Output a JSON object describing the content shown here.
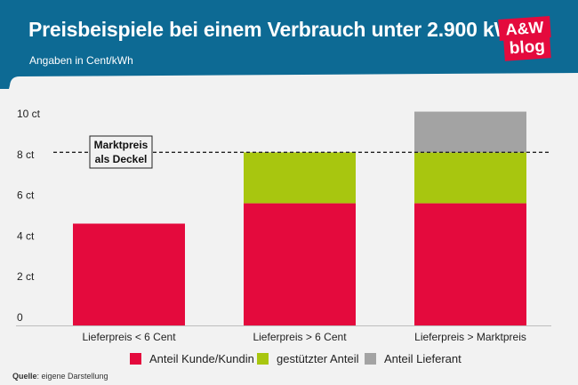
{
  "header": {
    "title": "Preisbeispiele bei einem Verbrauch unter 2.900 kWh",
    "subtitle": "Angaben in Cent/kWh",
    "logo_line1": "A&W",
    "logo_line2": "blog",
    "background_color": "#0d6a94",
    "logo_color": "#e40a3d"
  },
  "chart_data": {
    "type": "bar",
    "stacked": true,
    "categories": [
      "Lieferpreis < 6 Cent",
      "Lieferpreis > 6 Cent",
      "Lieferpreis > Marktpreis"
    ],
    "series": [
      {
        "name": "Anteil Kunde/Kundin",
        "color": "#e40a3d",
        "values": [
          5,
          6,
          6
        ]
      },
      {
        "name": "gestützter Anteil",
        "color": "#a8c60f",
        "values": [
          0,
          2.5,
          2.5
        ]
      },
      {
        "name": "Anteil Lieferant",
        "color": "#a3a3a3",
        "values": [
          0,
          0,
          2
        ]
      }
    ],
    "ylim": [
      0,
      10.5
    ],
    "yticks": [
      0,
      2,
      4,
      6,
      8,
      10
    ],
    "ytick_labels": [
      "0",
      "2 ct",
      "4 ct",
      "6 ct",
      "8 ct",
      "10 ct"
    ],
    "grid": false,
    "reference_line": {
      "value": 8.5,
      "label_line1": "Marktpreis",
      "label_line2": "als Deckel",
      "style": "dashed"
    },
    "legend_position": "bottom"
  },
  "footer": {
    "source_label": "Quelle",
    "source_text": ": eigene Darstellung"
  }
}
